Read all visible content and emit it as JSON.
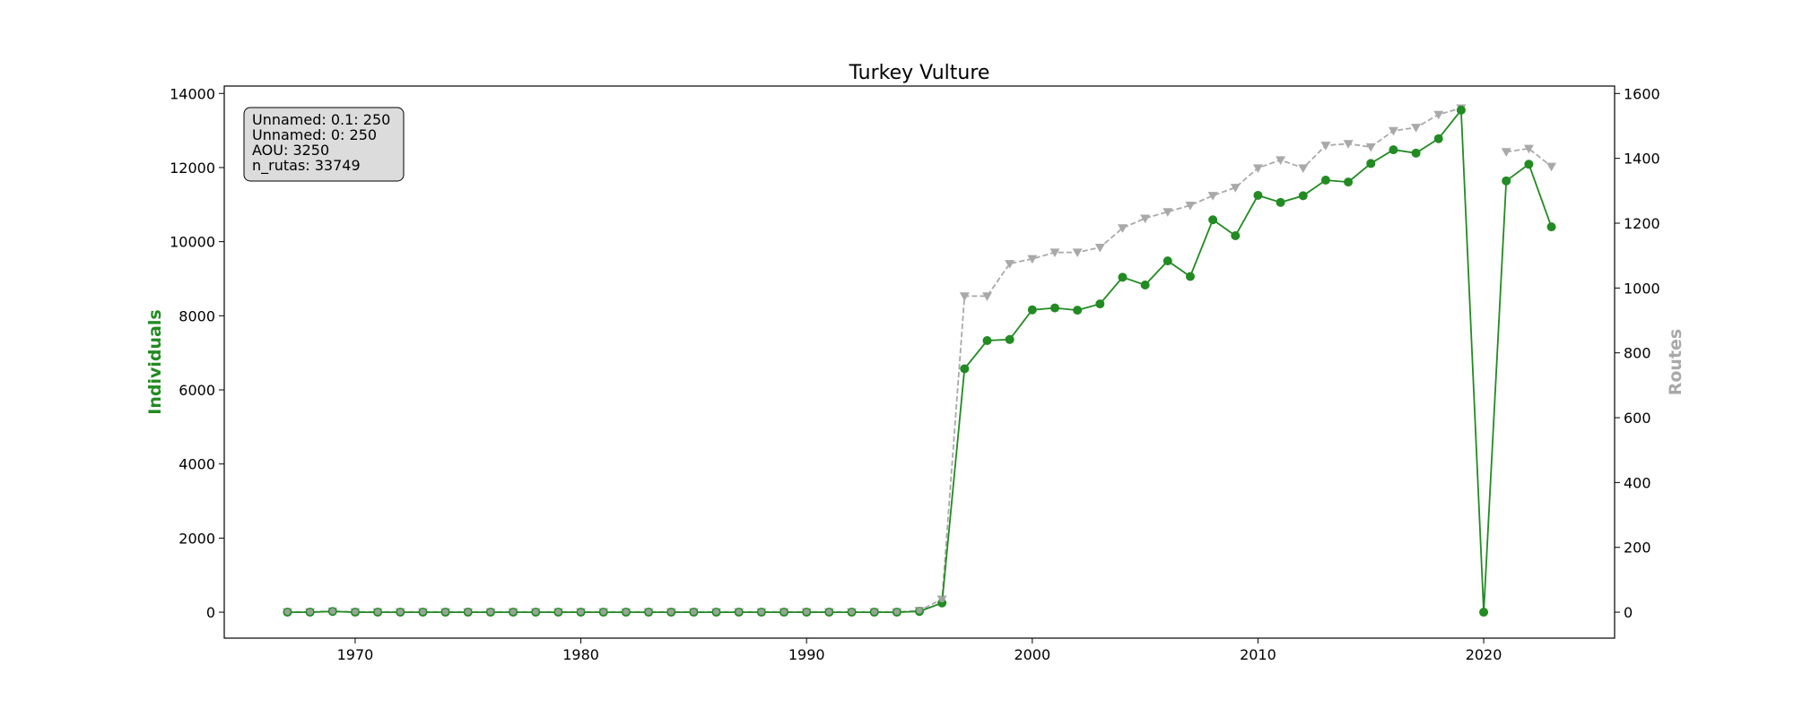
{
  "chart_data": {
    "type": "line",
    "title": "Turkey Vulture",
    "xlabel": "",
    "ylabel_left": "Individuals",
    "ylabel_right": "Routes",
    "xlim": [
      1964.2,
      2025.8
    ],
    "ylim_left": [
      -700,
      14200
    ],
    "ylim_right": [
      -80,
      1623
    ],
    "x_ticks": [
      1970,
      1980,
      1990,
      2000,
      2010,
      2020
    ],
    "y_ticks_left": [
      0,
      2000,
      4000,
      6000,
      8000,
      10000,
      12000,
      14000
    ],
    "y_ticks_right": [
      0,
      200,
      400,
      600,
      800,
      1000,
      1200,
      1400,
      1600
    ],
    "grid": false,
    "colors": {
      "individuals": "#228b22",
      "routes": "#a9a9a9"
    },
    "series": [
      {
        "axis": "left",
        "x": [
          1967,
          1968,
          1969,
          1970,
          1971,
          1972,
          1973,
          1974,
          1975,
          1976,
          1977,
          1978,
          1979,
          1980,
          1981,
          1982,
          1983,
          1984,
          1985,
          1986,
          1987,
          1988,
          1989,
          1990,
          1991,
          1992,
          1993,
          1994,
          1995,
          1996,
          1997,
          1998,
          1999,
          2000,
          2001,
          2002,
          2003,
          2004,
          2005,
          2006,
          2007,
          2008,
          2009,
          2010,
          2011,
          2012,
          2013,
          2014,
          2015,
          2016,
          2017,
          2018,
          2019,
          2020,
          2021,
          2022,
          2023
        ],
        "values": [
          0,
          0,
          20,
          0,
          0,
          0,
          0,
          0,
          0,
          0,
          0,
          0,
          0,
          0,
          0,
          0,
          0,
          0,
          0,
          0,
          0,
          0,
          0,
          0,
          0,
          0,
          0,
          0,
          20,
          250,
          6570,
          7330,
          7360,
          8160,
          8210,
          8150,
          8320,
          9040,
          8830,
          9480,
          9060,
          10590,
          10160,
          11250,
          11060,
          11240,
          11660,
          11610,
          12110,
          12480,
          12390,
          12780,
          13550,
          0,
          11640,
          12090,
          10400
        ]
      },
      {
        "axis": "right",
        "x": [
          1967,
          1968,
          1969,
          1970,
          1971,
          1972,
          1973,
          1974,
          1975,
          1976,
          1977,
          1978,
          1979,
          1980,
          1981,
          1982,
          1983,
          1984,
          1985,
          1986,
          1987,
          1988,
          1989,
          1990,
          1991,
          1992,
          1993,
          1994,
          1995,
          1996,
          1997,
          1998,
          1999,
          2000,
          2001,
          2002,
          2003,
          2004,
          2005,
          2006,
          2007,
          2008,
          2009,
          2010,
          2011,
          2012,
          2013,
          2014,
          2015,
          2016,
          2017,
          2018,
          2019,
          2020,
          2021,
          2022,
          2023
        ],
        "values": [
          1,
          1,
          3,
          1,
          1,
          1,
          1,
          1,
          1,
          1,
          1,
          1,
          1,
          1,
          1,
          1,
          1,
          1,
          1,
          1,
          1,
          1,
          1,
          1,
          1,
          1,
          1,
          1,
          5,
          40,
          975,
          975,
          1075,
          1090,
          1110,
          1110,
          1125,
          1185,
          1215,
          1235,
          1255,
          1285,
          1310,
          1370,
          1395,
          1370,
          1440,
          1445,
          1435,
          1485,
          1495,
          1535,
          1555,
          null,
          1420,
          1430,
          1375
        ]
      }
    ]
  },
  "legend_box": {
    "lines": [
      "Unnamed: 0.1: 250",
      "Unnamed: 0: 250",
      "AOU: 3250",
      "n_rutas: 33749"
    ]
  }
}
